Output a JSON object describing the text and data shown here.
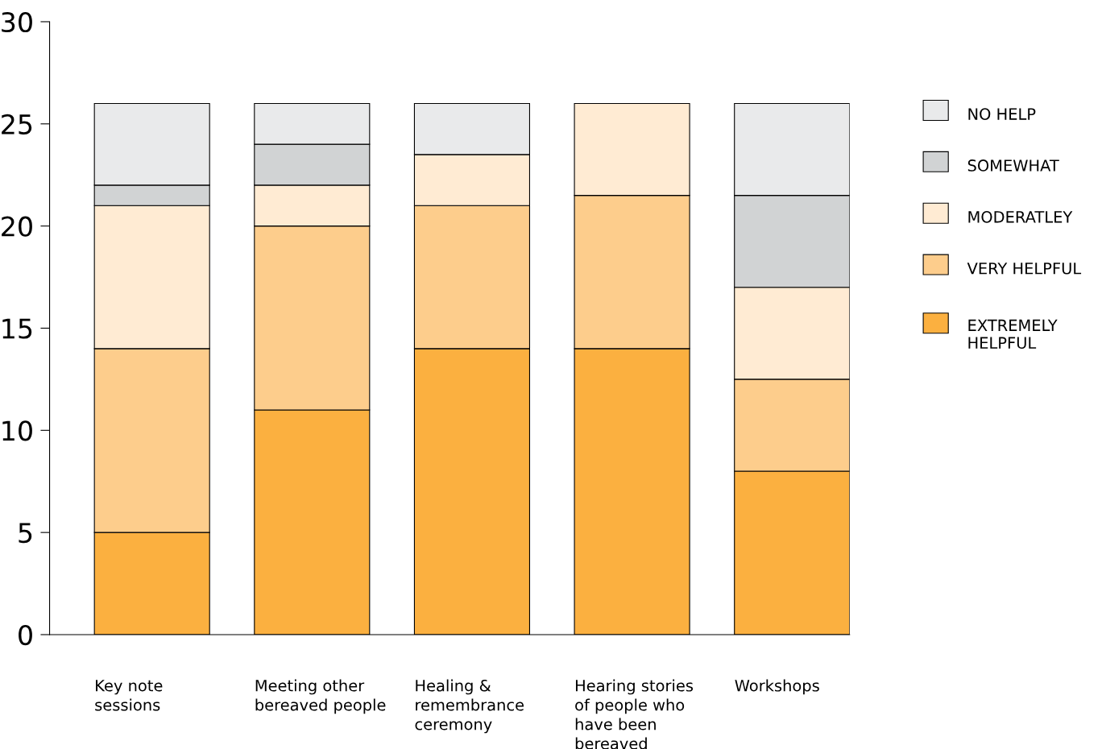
{
  "chart_data": {
    "type": "bar",
    "stacked": true,
    "categories": [
      "Key note\nsessions",
      "Meeting other\nbereaved people",
      "Healing &\nremembrance\nceremony",
      "Hearing stories\nof people who\nhave been\nbereaved",
      "Workshops"
    ],
    "series": [
      {
        "name": "EXTREMELY\nHELPFUL",
        "color": "#fbb040",
        "values": [
          5,
          11,
          14,
          14,
          8
        ]
      },
      {
        "name": "VERY HELPFUL",
        "color": "#fdcd8c",
        "values": [
          9,
          9,
          7,
          7.5,
          4.5
        ]
      },
      {
        "name": "MODERATLEY",
        "color": "#ffebd3",
        "values": [
          7,
          2,
          2.5,
          4.5,
          4.5
        ]
      },
      {
        "name": "SOMEWHAT",
        "color": "#d1d3d4",
        "values": [
          1,
          2,
          0,
          0,
          4.5
        ]
      },
      {
        "name": "NO HELP",
        "color": "#e9eaeb",
        "values": [
          4,
          2,
          2.5,
          0,
          4.5
        ]
      }
    ],
    "ylim": [
      0,
      30
    ],
    "yticks": [
      0,
      5,
      10,
      15,
      20,
      25,
      30
    ],
    "grid": false,
    "legend": "right"
  }
}
